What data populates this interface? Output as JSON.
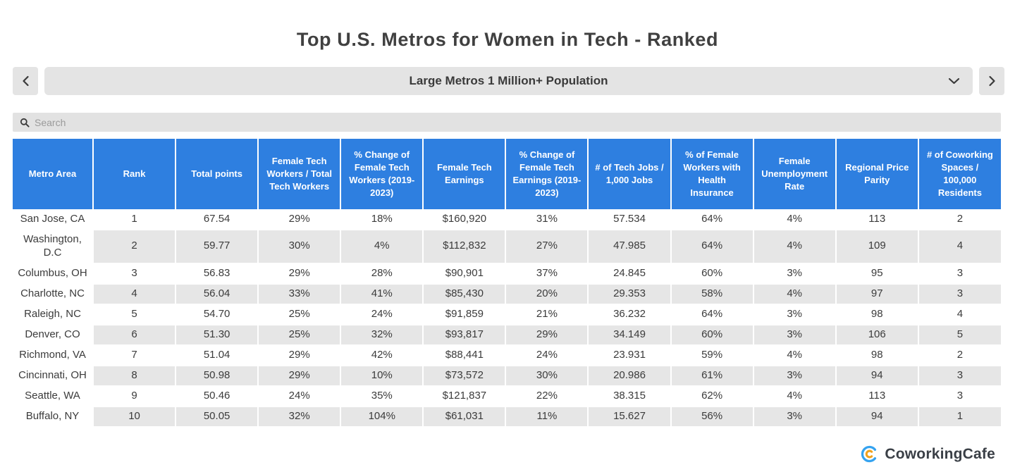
{
  "page": {
    "title": "Top U.S. Metros for Women in Tech - Ranked"
  },
  "nav": {
    "selector_label": "Large Metros 1 Million+ Population",
    "prev_icon": "chevron-left",
    "next_icon": "chevron-right",
    "caret_icon": "chevron-down"
  },
  "search": {
    "placeholder": "Search",
    "value": "",
    "icon": "search-icon"
  },
  "table": {
    "columns": [
      "Metro Area",
      "Rank",
      "Total points",
      "Female Tech Workers / Total Tech Workers",
      "% Change of Female Tech Workers (2019-2023)",
      "Female Tech Earnings",
      "% Change of Female Tech Earnings (2019-2023)",
      "# of Tech Jobs / 1,000 Jobs",
      "% of Female Workers with Health Insurance",
      "Female Unemployment Rate",
      "Regional Price Parity",
      "# of Coworking Spaces / 100,000 Residents"
    ],
    "rows": [
      [
        "San Jose, CA",
        "1",
        "67.54",
        "29%",
        "18%",
        "$160,920",
        "31%",
        "57.534",
        "64%",
        "4%",
        "113",
        "2"
      ],
      [
        "Washington, D.C",
        "2",
        "59.77",
        "30%",
        "4%",
        "$112,832",
        "27%",
        "47.985",
        "64%",
        "4%",
        "109",
        "4"
      ],
      [
        "Columbus, OH",
        "3",
        "56.83",
        "29%",
        "28%",
        "$90,901",
        "37%",
        "24.845",
        "60%",
        "3%",
        "95",
        "3"
      ],
      [
        "Charlotte, NC",
        "4",
        "56.04",
        "33%",
        "41%",
        "$85,430",
        "20%",
        "29.353",
        "58%",
        "4%",
        "97",
        "3"
      ],
      [
        "Raleigh, NC",
        "5",
        "54.70",
        "25%",
        "24%",
        "$91,859",
        "21%",
        "36.232",
        "64%",
        "3%",
        "98",
        "4"
      ],
      [
        "Denver, CO",
        "6",
        "51.30",
        "25%",
        "32%",
        "$93,817",
        "29%",
        "34.149",
        "60%",
        "3%",
        "106",
        "5"
      ],
      [
        "Richmond, VA",
        "7",
        "51.04",
        "29%",
        "42%",
        "$88,441",
        "24%",
        "23.931",
        "59%",
        "4%",
        "98",
        "2"
      ],
      [
        "Cincinnati, OH",
        "8",
        "50.98",
        "29%",
        "10%",
        "$73,572",
        "30%",
        "20.986",
        "61%",
        "3%",
        "94",
        "3"
      ],
      [
        "Seattle, WA",
        "9",
        "50.46",
        "24%",
        "35%",
        "$121,837",
        "22%",
        "38.315",
        "62%",
        "4%",
        "113",
        "3"
      ],
      [
        "Buffalo, NY",
        "10",
        "50.05",
        "32%",
        "104%",
        "$61,031",
        "11%",
        "15.627",
        "56%",
        "3%",
        "94",
        "1"
      ]
    ]
  },
  "footer": {
    "brand": "CoworkingCafe"
  },
  "colors": {
    "header_blue": "#2e7fe0",
    "stripe_gray": "#e6e6e6",
    "control_gray": "#e4e4e4",
    "logo_blue": "#35a3f0",
    "logo_orange": "#f0a31e"
  }
}
